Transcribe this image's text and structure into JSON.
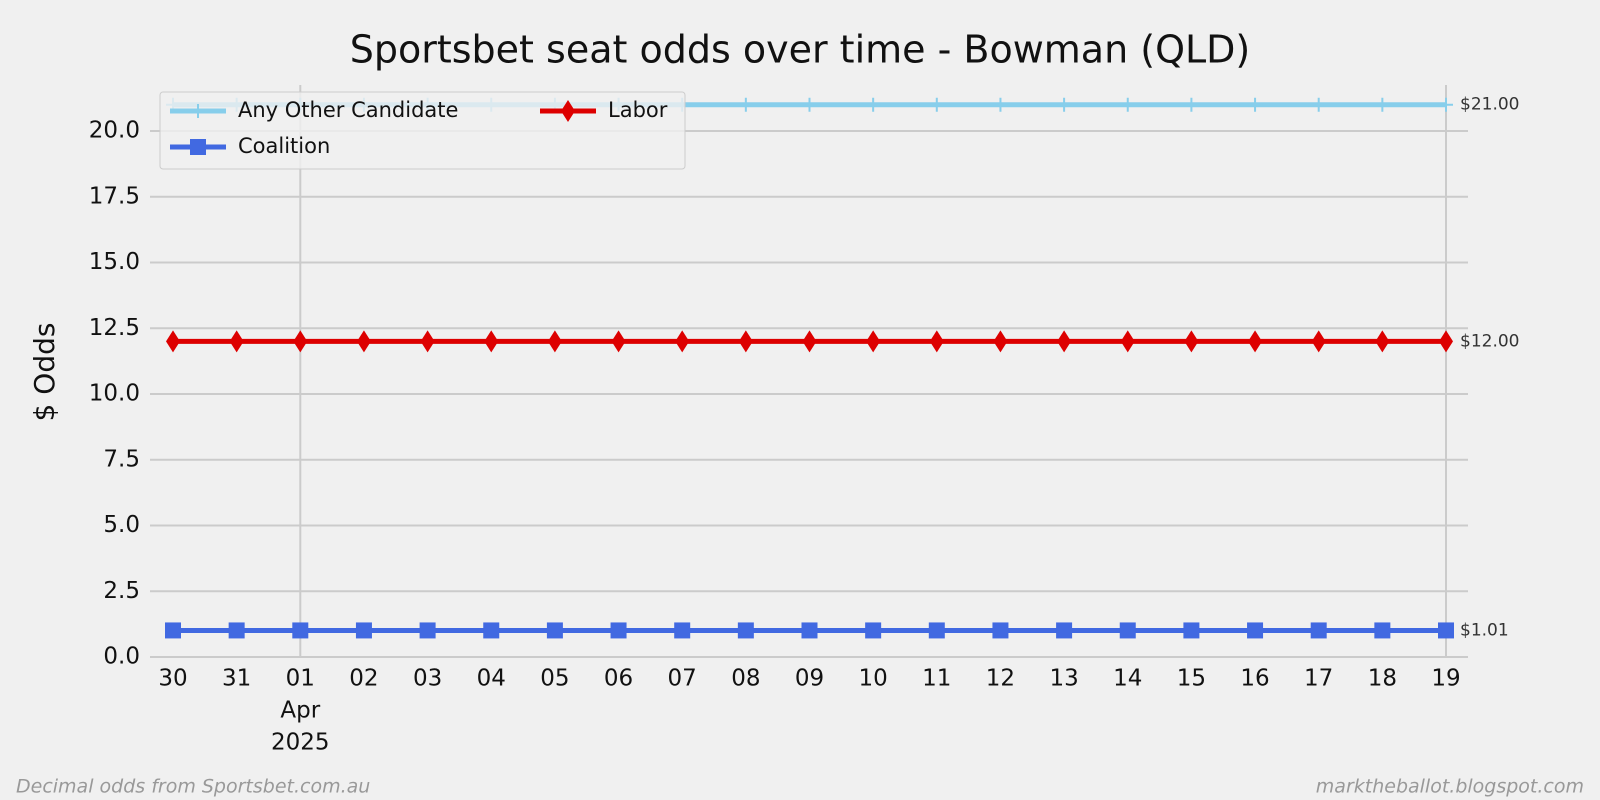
{
  "chart_data": {
    "type": "line",
    "title": "Sportsbet seat odds over time - Bowman (QLD)",
    "ylabel": "$ Odds",
    "categories": [
      "30",
      "31",
      "01",
      "02",
      "03",
      "04",
      "05",
      "06",
      "07",
      "08",
      "09",
      "10",
      "11",
      "12",
      "13",
      "14",
      "15",
      "16",
      "17",
      "18",
      "19"
    ],
    "x_period_label": {
      "month": "Apr",
      "year": "2025"
    },
    "series": [
      {
        "name": "Any Other Candidate",
        "color": "#87ceeb",
        "marker": "plus",
        "end_label": "$21.00",
        "values": [
          21,
          21,
          21,
          21,
          21,
          21,
          21,
          21,
          21,
          21,
          21,
          21,
          21,
          21,
          21,
          21,
          21,
          21,
          21,
          21,
          21
        ]
      },
      {
        "name": "Coalition",
        "color": "#4169e1",
        "marker": "square",
        "end_label": "$1.01",
        "values": [
          1.01,
          1.01,
          1.01,
          1.01,
          1.01,
          1.01,
          1.01,
          1.01,
          1.01,
          1.01,
          1.01,
          1.01,
          1.01,
          1.01,
          1.01,
          1.01,
          1.01,
          1.01,
          1.01,
          1.01,
          1.01
        ]
      },
      {
        "name": "Labor",
        "color": "#dd0000",
        "marker": "diamond",
        "end_label": "$12.00",
        "values": [
          12,
          12,
          12,
          12,
          12,
          12,
          12,
          12,
          12,
          12,
          12,
          12,
          12,
          12,
          12,
          12,
          12,
          12,
          12,
          12,
          12
        ]
      }
    ],
    "ylim": [
      0,
      21.75
    ],
    "yticks": [
      {
        "value": 0,
        "label": "0.0"
      },
      2.5,
      {
        "value": 5,
        "label": "5.0"
      },
      7.5,
      {
        "value": 10,
        "label": "10.0"
      },
      12.5,
      {
        "value": 15,
        "label": "15.0"
      },
      17.5,
      {
        "value": 20,
        "label": "20.0"
      }
    ],
    "grid": true,
    "legend": "upper left",
    "footer_left": "Decimal odds from Sportsbet.com.au",
    "footer_right": "marktheballot.blogspot.com"
  }
}
